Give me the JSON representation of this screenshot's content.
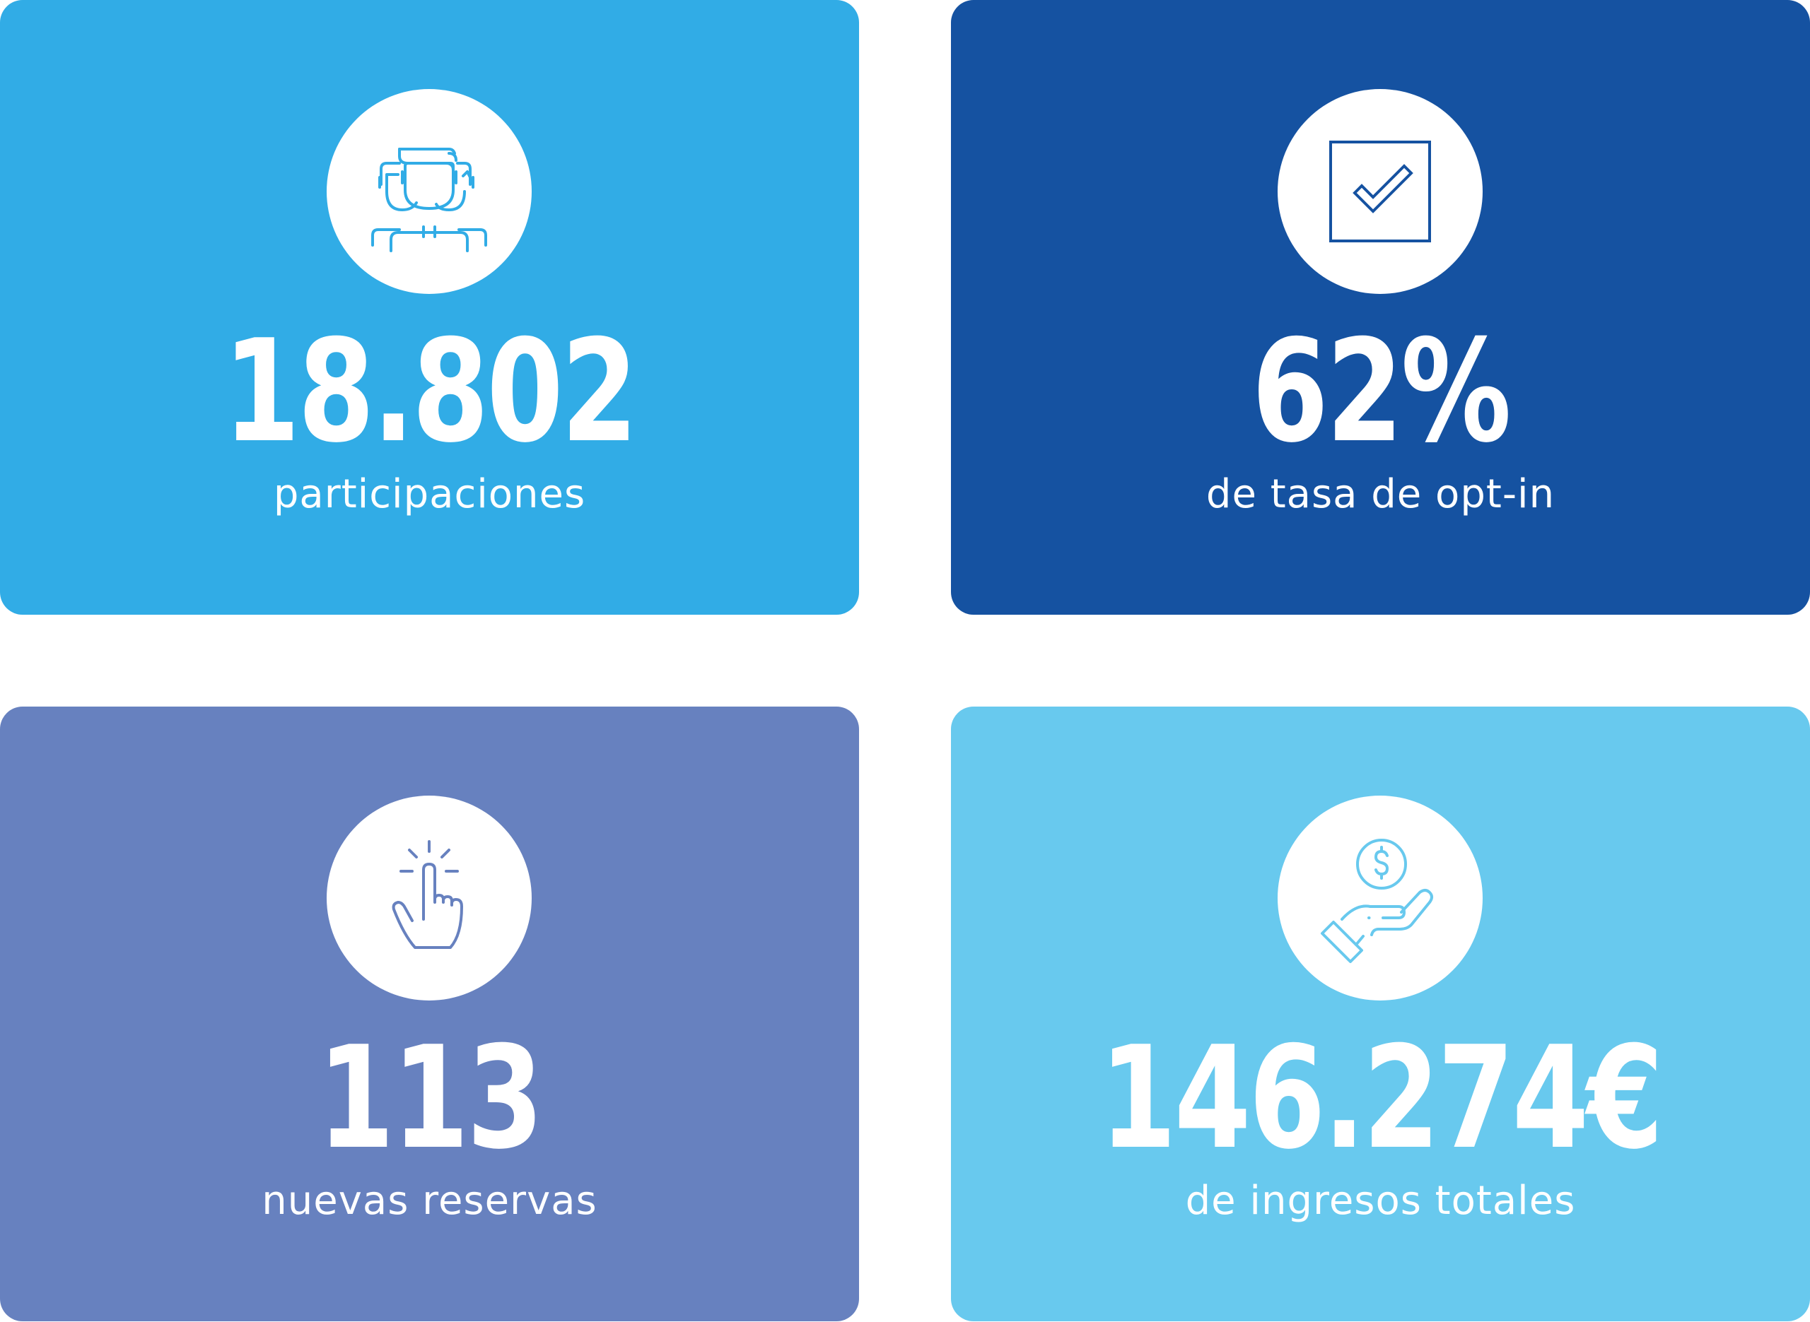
{
  "cards": [
    {
      "value": "18.802",
      "label": "participaciones",
      "icon": "people-group-icon",
      "bg": "#31ACE6",
      "icon_color": "#31ACE6"
    },
    {
      "value": "62%",
      "label": "de tasa de opt-in",
      "icon": "checkbox-checked-icon",
      "bg": "#1552A1",
      "icon_color": "#1552A1"
    },
    {
      "value": "113",
      "label": "nuevas reservas",
      "icon": "pointer-click-icon",
      "bg": "#6781BF",
      "icon_color": "#6781BF"
    },
    {
      "value": "146.274€",
      "label": "de ingresos totales",
      "icon": "hand-coin-icon",
      "bg": "#68C9EE",
      "icon_color": "#68C9EE"
    }
  ]
}
